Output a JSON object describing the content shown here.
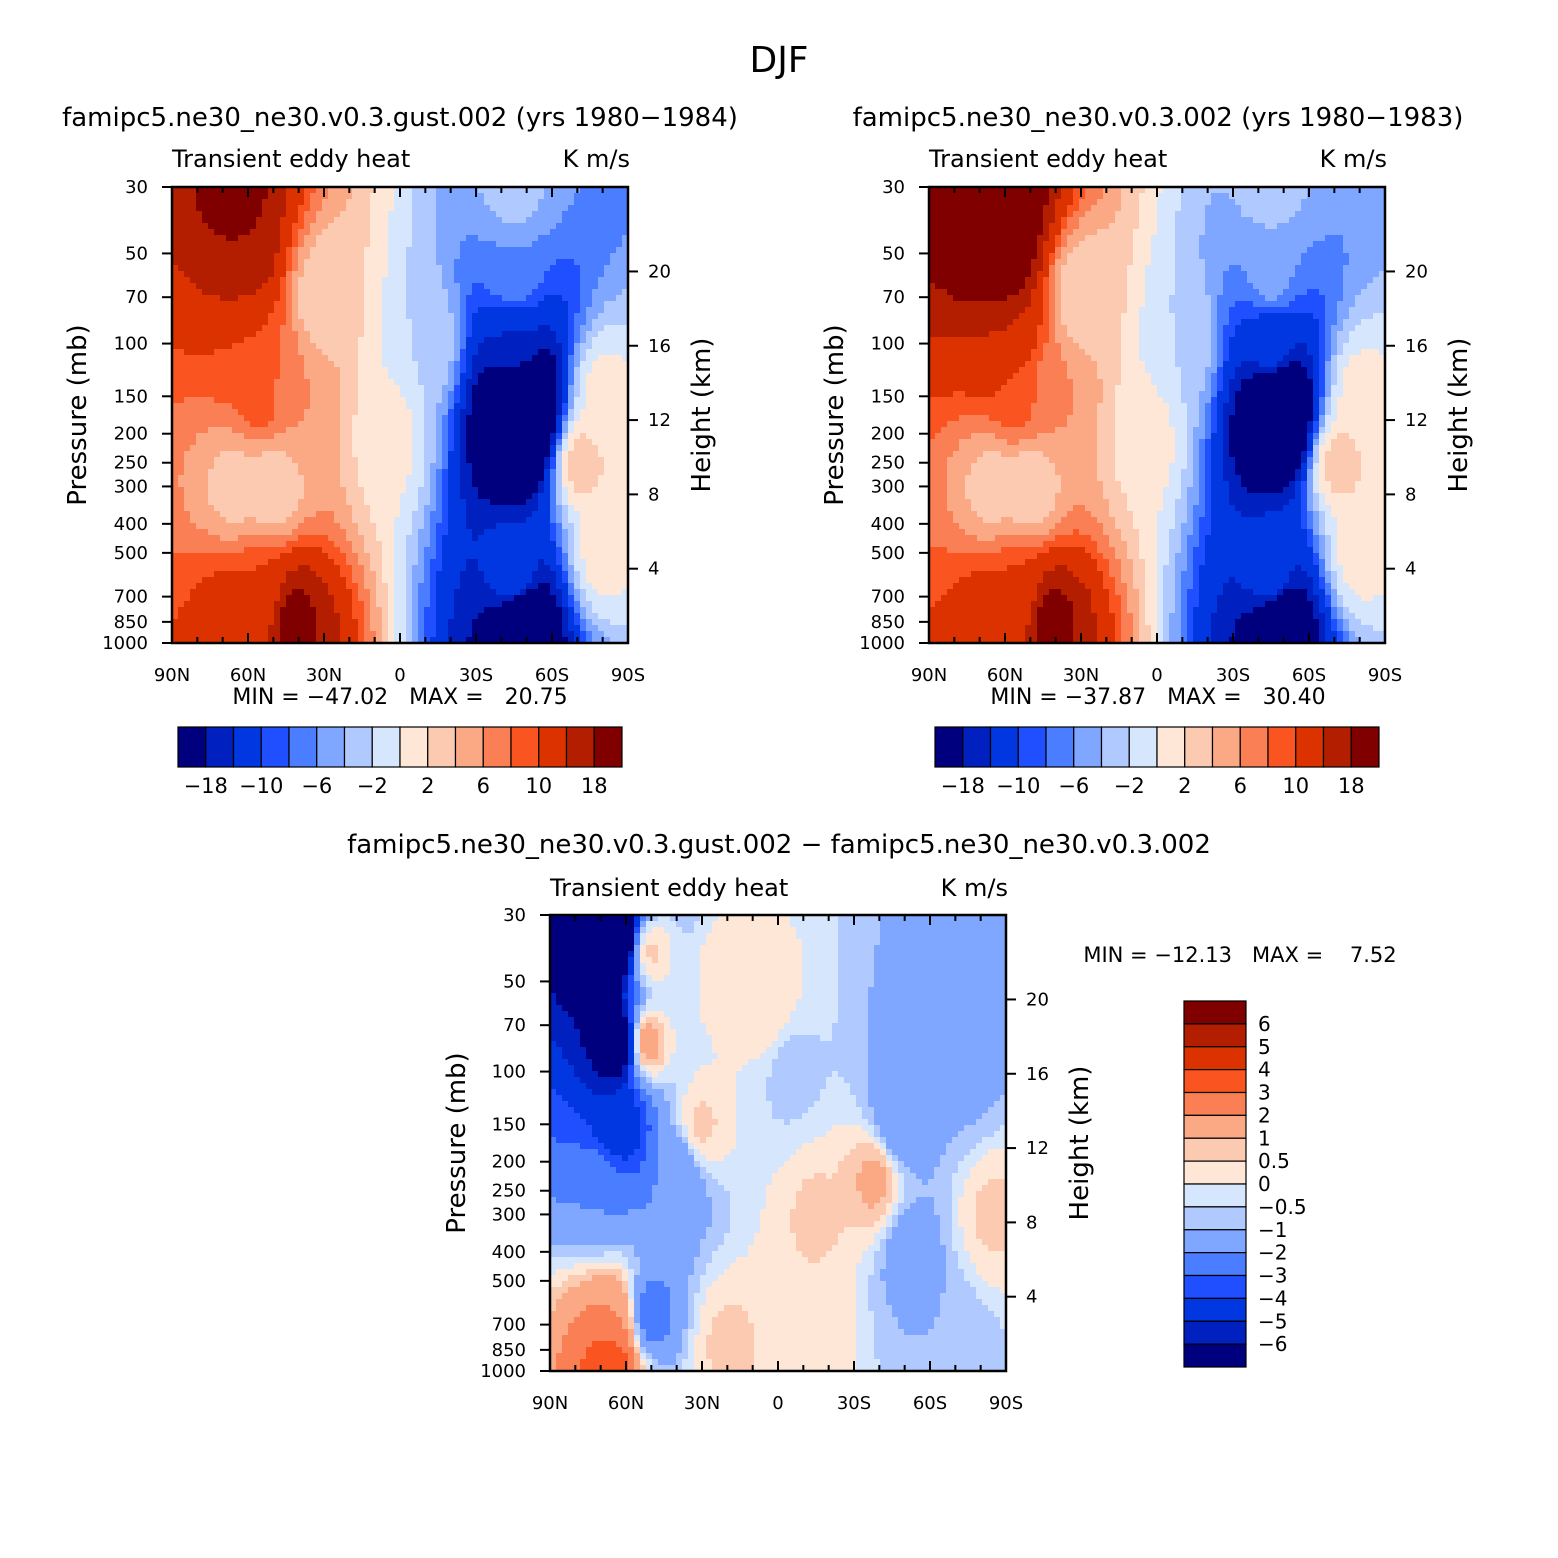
{
  "page": {
    "title": "DJF"
  },
  "colors": {
    "main_scale": [
      "#00007f",
      "#0020bf",
      "#0037e0",
      "#1f4fff",
      "#4a7dff",
      "#7fa7ff",
      "#b0c9ff",
      "#d6e6fc",
      "#fee7d6",
      "#fccab0",
      "#fba985",
      "#fb7f55",
      "#fa5520",
      "#dc3200",
      "#b41e00",
      "#800000"
    ],
    "diff_scale": [
      "#00007f",
      "#0020bf",
      "#0037e0",
      "#1f4fff",
      "#4a7dff",
      "#7fa7ff",
      "#b0c9ff",
      "#d6e6fc",
      "#fee7d6",
      "#fccab0",
      "#fba985",
      "#fb7f55",
      "#fa5520",
      "#dc3200",
      "#b41e00",
      "#800000"
    ]
  },
  "chart_data": [
    {
      "type": "heatmap",
      "title": "famipc5.ne30_ne30.v0.3.gust.002 (yrs 1980−1984)",
      "left_string": "Transient eddy heat",
      "right_string": "K m/s",
      "xlabel": "",
      "ylabel": "Pressure (mb)",
      "ylabel_right": "Height (km)",
      "x_ticks": [
        "90N",
        "60N",
        "30N",
        "0",
        "30S",
        "60S",
        "90S"
      ],
      "y_ticks": [
        "30",
        "50",
        "70",
        "100",
        "150",
        "200",
        "250",
        "300",
        "400",
        "500",
        "700",
        "850",
        "1000"
      ],
      "y2_ticks": [
        "20",
        "16",
        "12",
        "8",
        "4"
      ],
      "ylim": [
        1000,
        30
      ],
      "y_scale": "log",
      "stats": "MIN = −47.02   MAX =   20.75",
      "colorbar_labels": [
        "−18",
        "−10",
        "−6",
        "−2",
        "2",
        "6",
        "10",
        "18"
      ],
      "colorbar_levels": [
        -18,
        -14,
        -10,
        -8,
        -6,
        -4,
        -2,
        0,
        2,
        4,
        6,
        8,
        10,
        14,
        18
      ],
      "features": [
        {
          "lat": 65,
          "p": 30,
          "value": 20
        },
        {
          "lat": 62,
          "p": 50,
          "value": 18
        },
        {
          "lat": 60,
          "p": 100,
          "value": 10
        },
        {
          "lat": 55,
          "p": 150,
          "value": 9
        },
        {
          "lat": 40,
          "p": 150,
          "value": 6
        },
        {
          "lat": 30,
          "p": 70,
          "value": 2
        },
        {
          "lat": 65,
          "p": 300,
          "value": 3
        },
        {
          "lat": 50,
          "p": 300,
          "value": 2
        },
        {
          "lat": 55,
          "p": 700,
          "value": 10
        },
        {
          "lat": 43,
          "p": 850,
          "value": 20
        },
        {
          "lat": 65,
          "p": 850,
          "value": 12
        },
        {
          "lat": 5,
          "p": 200,
          "value": 1
        },
        {
          "lat": -10,
          "p": 100,
          "value": -2
        },
        {
          "lat": -48,
          "p": 170,
          "value": -47
        },
        {
          "lat": -45,
          "p": 100,
          "value": -14
        },
        {
          "lat": -45,
          "p": 60,
          "value": -6
        },
        {
          "lat": -45,
          "p": 30,
          "value": -3
        },
        {
          "lat": -48,
          "p": 850,
          "value": -30
        },
        {
          "lat": -45,
          "p": 600,
          "value": -10
        },
        {
          "lat": -72,
          "p": 250,
          "value": 3
        },
        {
          "lat": -80,
          "p": 150,
          "value": 1
        },
        {
          "lat": -80,
          "p": 500,
          "value": 1
        }
      ]
    },
    {
      "type": "heatmap",
      "title": "famipc5.ne30_ne30.v0.3.002 (yrs 1980−1983)",
      "left_string": "Transient eddy heat",
      "right_string": "K m/s",
      "xlabel": "",
      "ylabel": "Pressure (mb)",
      "ylabel_right": "Height (km)",
      "x_ticks": [
        "90N",
        "60N",
        "30N",
        "0",
        "30S",
        "60S",
        "90S"
      ],
      "y_ticks": [
        "30",
        "50",
        "70",
        "100",
        "150",
        "200",
        "250",
        "300",
        "400",
        "500",
        "700",
        "850",
        "1000"
      ],
      "y2_ticks": [
        "20",
        "16",
        "12",
        "8",
        "4"
      ],
      "ylim": [
        1000,
        30
      ],
      "y_scale": "log",
      "stats": "MIN = −37.87   MAX =   30.40",
      "colorbar_labels": [
        "−18",
        "−10",
        "−6",
        "−2",
        "2",
        "6",
        "10",
        "18"
      ],
      "colorbar_levels": [
        -18,
        -14,
        -10,
        -8,
        -6,
        -4,
        -2,
        0,
        2,
        4,
        6,
        8,
        10,
        14,
        18
      ],
      "features": [
        {
          "lat": 65,
          "p": 30,
          "value": 30
        },
        {
          "lat": 62,
          "p": 50,
          "value": 24
        },
        {
          "lat": 60,
          "p": 100,
          "value": 14
        },
        {
          "lat": 55,
          "p": 150,
          "value": 9
        },
        {
          "lat": 40,
          "p": 150,
          "value": 6
        },
        {
          "lat": 30,
          "p": 70,
          "value": 2
        },
        {
          "lat": 65,
          "p": 300,
          "value": 3
        },
        {
          "lat": 50,
          "p": 300,
          "value": 2
        },
        {
          "lat": 55,
          "p": 700,
          "value": 10
        },
        {
          "lat": 43,
          "p": 850,
          "value": 20
        },
        {
          "lat": 65,
          "p": 850,
          "value": 12
        },
        {
          "lat": 5,
          "p": 200,
          "value": 1
        },
        {
          "lat": -10,
          "p": 100,
          "value": -2
        },
        {
          "lat": -48,
          "p": 170,
          "value": -38
        },
        {
          "lat": -45,
          "p": 100,
          "value": -12
        },
        {
          "lat": -45,
          "p": 60,
          "value": -5
        },
        {
          "lat": -45,
          "p": 30,
          "value": -3
        },
        {
          "lat": -48,
          "p": 850,
          "value": -28
        },
        {
          "lat": -45,
          "p": 600,
          "value": -10
        },
        {
          "lat": -72,
          "p": 250,
          "value": 3
        },
        {
          "lat": -80,
          "p": 150,
          "value": 1
        },
        {
          "lat": -80,
          "p": 500,
          "value": 1
        }
      ]
    },
    {
      "type": "heatmap",
      "title": "famipc5.ne30_ne30.v0.3.gust.002 − famipc5.ne30_ne30.v0.3.002",
      "left_string": "Transient eddy heat",
      "right_string": "K m/s",
      "xlabel": "",
      "ylabel": "Pressure (mb)",
      "ylabel_right": "Height (km)",
      "x_ticks": [
        "90N",
        "60N",
        "30N",
        "0",
        "30S",
        "60S",
        "90S"
      ],
      "y_ticks": [
        "30",
        "50",
        "70",
        "100",
        "150",
        "200",
        "250",
        "300",
        "400",
        "500",
        "700",
        "850",
        "1000"
      ],
      "y2_ticks": [
        "20",
        "16",
        "12",
        "8",
        "4"
      ],
      "ylim": [
        1000,
        30
      ],
      "y_scale": "log",
      "stats": "MIN = −12.13   MAX =    7.52",
      "colorbar_labels": [
        "6",
        "5",
        "4",
        "3",
        "2",
        "1",
        "0.5",
        "0",
        "−0.5",
        "−1",
        "−2",
        "−3",
        "−4",
        "−5",
        "−6"
      ],
      "colorbar_levels": [
        -6,
        -5,
        -4,
        -3,
        -2,
        -1,
        -0.5,
        0,
        0.5,
        1,
        2,
        3,
        4,
        5,
        6
      ],
      "features": [
        {
          "lat": 65,
          "p": 35,
          "value": -12
        },
        {
          "lat": 63,
          "p": 80,
          "value": -8
        },
        {
          "lat": 63,
          "p": 150,
          "value": -5
        },
        {
          "lat": 70,
          "p": 250,
          "value": -2
        },
        {
          "lat": 52,
          "p": 80,
          "value": 1.5
        },
        {
          "lat": 50,
          "p": 40,
          "value": 0.6
        },
        {
          "lat": 40,
          "p": 220,
          "value": -2
        },
        {
          "lat": 30,
          "p": 150,
          "value": 0.6
        },
        {
          "lat": 65,
          "p": 700,
          "value": 2
        },
        {
          "lat": 66,
          "p": 900,
          "value": 4
        },
        {
          "lat": 50,
          "p": 650,
          "value": -2.5
        },
        {
          "lat": 20,
          "p": 50,
          "value": 0.5
        },
        {
          "lat": 5,
          "p": 60,
          "value": 0.5
        },
        {
          "lat": -5,
          "p": 100,
          "value": -0.7
        },
        {
          "lat": -15,
          "p": 300,
          "value": 0.6
        },
        {
          "lat": -38,
          "p": 230,
          "value": 1.2
        },
        {
          "lat": -48,
          "p": 150,
          "value": -2
        },
        {
          "lat": -60,
          "p": 70,
          "value": -1.5
        },
        {
          "lat": -75,
          "p": 100,
          "value": -1.2
        },
        {
          "lat": -52,
          "p": 400,
          "value": -1.5
        },
        {
          "lat": -68,
          "p": 850,
          "value": -1
        },
        {
          "lat": -85,
          "p": 300,
          "value": 0.6
        },
        {
          "lat": -10,
          "p": 700,
          "value": 0.5
        },
        {
          "lat": 20,
          "p": 800,
          "value": 0.6
        }
      ]
    }
  ]
}
